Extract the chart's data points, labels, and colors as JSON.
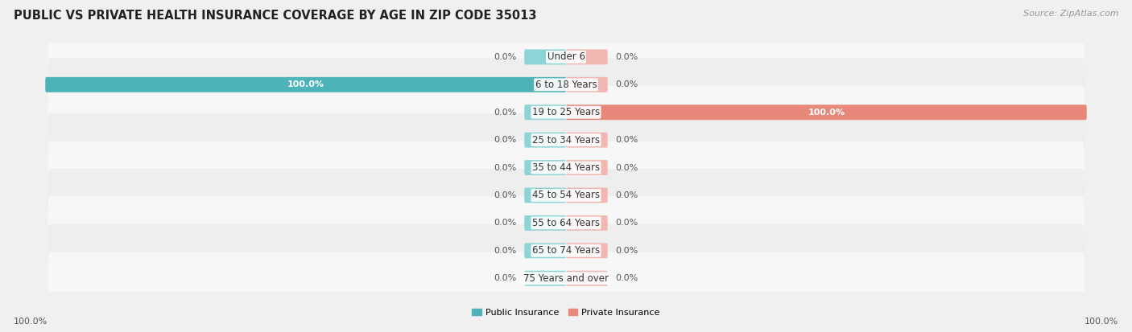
{
  "title": "PUBLIC VS PRIVATE HEALTH INSURANCE COVERAGE BY AGE IN ZIP CODE 35013",
  "source": "Source: ZipAtlas.com",
  "categories": [
    "Under 6",
    "6 to 18 Years",
    "19 to 25 Years",
    "25 to 34 Years",
    "35 to 44 Years",
    "45 to 54 Years",
    "55 to 64 Years",
    "65 to 74 Years",
    "75 Years and over"
  ],
  "public_values": [
    0.0,
    100.0,
    0.0,
    0.0,
    0.0,
    0.0,
    0.0,
    0.0,
    0.0
  ],
  "private_values": [
    0.0,
    0.0,
    100.0,
    0.0,
    0.0,
    0.0,
    0.0,
    0.0,
    0.0
  ],
  "public_color": "#4db3b8",
  "private_color": "#e8887a",
  "public_stub_color": "#8dd4d7",
  "private_stub_color": "#f0b8b0",
  "public_label": "Public Insurance",
  "private_label": "Private Insurance",
  "background_color": "#f0f0f0",
  "row_bg_odd": "#f7f7f7",
  "row_bg_even": "#eeeeee",
  "x_min": -100,
  "x_max": 100,
  "stub_size": 8,
  "title_fontsize": 10.5,
  "source_fontsize": 8,
  "label_fontsize": 8,
  "category_fontsize": 8.5,
  "value_label_color": "#555555",
  "white_label_color": "#ffffff",
  "axis_label_left": "100.0%",
  "axis_label_right": "100.0%"
}
